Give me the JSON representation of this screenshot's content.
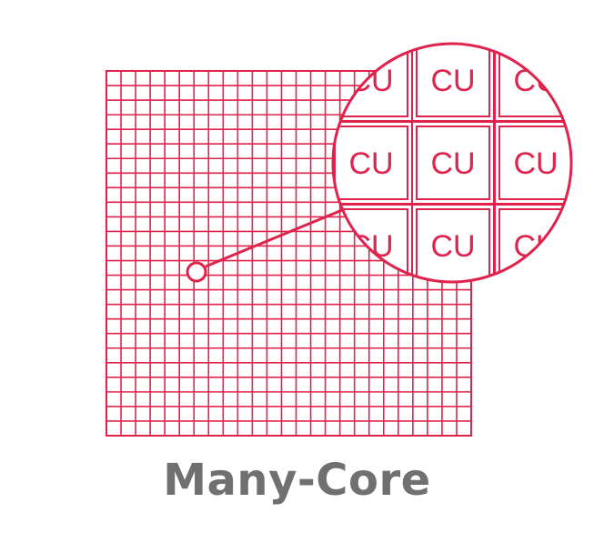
{
  "caption": "Many-Core",
  "cell_label": "CU",
  "colors": {
    "accent": "#e0234c",
    "caption": "#707070",
    "background": "#ffffff"
  },
  "grid": {
    "rows": 25,
    "cols": 25
  },
  "magnifier": {
    "rows": 3,
    "cols": 3
  }
}
